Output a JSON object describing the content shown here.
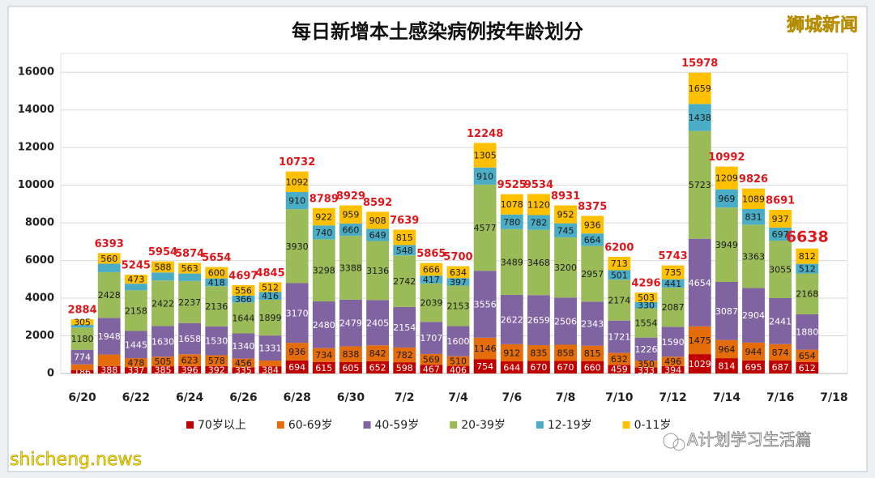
{
  "chart_data": {
    "type": "stacked_bar",
    "title": "每日新增本土感染病例按年龄划分",
    "watermarks": [
      "狮城新闻",
      "shicheng.news",
      "A计划学习生活篇"
    ],
    "categories": [
      "6/20",
      null,
      "6/22",
      null,
      "6/24",
      null,
      "6/26",
      null,
      "6/28",
      null,
      "6/30",
      null,
      "7/2",
      null,
      "7/4",
      null,
      "7/6",
      null,
      "7/8",
      null,
      "7/10",
      null,
      "7/12",
      null,
      "7/14",
      null,
      "7/16",
      null,
      "7/18"
    ],
    "ylim": [
      0,
      17000
    ],
    "yticks": [
      0,
      2000,
      4000,
      6000,
      8000,
      10000,
      12000,
      14000,
      16000
    ],
    "grid": true,
    "legend": "bottom",
    "totals": [
      2884,
      6393,
      5245,
      5954,
      5874,
      5654,
      4697,
      4845,
      10732,
      8789,
      8929,
      8592,
      7639,
      5865,
      5700,
      12248,
      9525,
      9534,
      8931,
      8375,
      6200,
      4296,
      5743,
      15978,
      10992,
      9826,
      8691,
      6638,
      null
    ],
    "series": [
      {
        "name": "70岁以上",
        "color": "#c00000",
        "values": [
          186,
          388,
          337,
          385,
          396,
          392,
          335,
          384,
          694,
          615,
          605,
          652,
          598,
          467,
          406,
          754,
          644,
          670,
          670,
          660,
          459,
          333,
          394,
          1029,
          814,
          695,
          687,
          612,
          null
        ]
      },
      {
        "name": "60-69岁",
        "color": "#e46c0a",
        "values": [
          300,
          620,
          478,
          505,
          623,
          578,
          456,
          303,
          936,
          734,
          838,
          842,
          782,
          569,
          510,
          1146,
          912,
          835,
          858,
          815,
          632,
          350,
          496,
          1475,
          964,
          944,
          874,
          654,
          null
        ],
        "value_labels": [
          null,
          null,
          "478",
          "505",
          "623",
          "578",
          "456",
          null,
          "936",
          "734",
          "838",
          "842",
          "782",
          "569",
          "510",
          "1146",
          "912",
          "835",
          "858",
          "815",
          "632",
          "350",
          "496",
          "1475",
          "964",
          "944",
          "874",
          "654",
          null
        ]
      },
      {
        "name": "40-59岁",
        "color": "#8064a2",
        "values": [
          774,
          1948,
          1445,
          1630,
          1658,
          1530,
          1340,
          1331,
          3170,
          2480,
          2479,
          2405,
          2154,
          1707,
          1600,
          3556,
          2622,
          2659,
          2506,
          2343,
          1721,
          1226,
          1590,
          4654,
          3087,
          2904,
          2441,
          1880,
          null
        ]
      },
      {
        "name": "20-39岁",
        "color": "#9bbb59",
        "values": [
          1180,
          2428,
          2158,
          2422,
          2237,
          2136,
          1644,
          1899,
          3930,
          3298,
          3388,
          3136,
          2742,
          2039,
          2153,
          4577,
          3489,
          3468,
          3200,
          2957,
          2174,
          1554,
          2087,
          5723,
          3949,
          3363,
          3055,
          2168,
          null
        ]
      },
      {
        "name": "12-19岁",
        "color": "#4bacc6",
        "values": [
          139,
          449,
          354,
          424,
          397,
          418,
          366,
          416,
          910,
          740,
          660,
          649,
          548,
          417,
          397,
          910,
          780,
          782,
          745,
          664,
          501,
          330,
          441,
          1438,
          969,
          831,
          697,
          512,
          null
        ],
        "value_labels": [
          null,
          null,
          null,
          null,
          null,
          "418",
          "366",
          "416",
          "910",
          "740",
          "660",
          "649",
          "548",
          "417",
          "397",
          "910",
          "780",
          "782",
          "745",
          "664",
          "501",
          "330",
          "441",
          "1438",
          "969",
          "831",
          "697",
          "512",
          null
        ]
      },
      {
        "name": "0-11岁",
        "color": "#ffc000",
        "values": [
          305,
          560,
          473,
          588,
          563,
          600,
          556,
          512,
          1092,
          922,
          959,
          908,
          815,
          666,
          634,
          1305,
          1078,
          1120,
          952,
          936,
          713,
          503,
          735,
          1659,
          1209,
          1089,
          937,
          812,
          null
        ]
      }
    ]
  }
}
